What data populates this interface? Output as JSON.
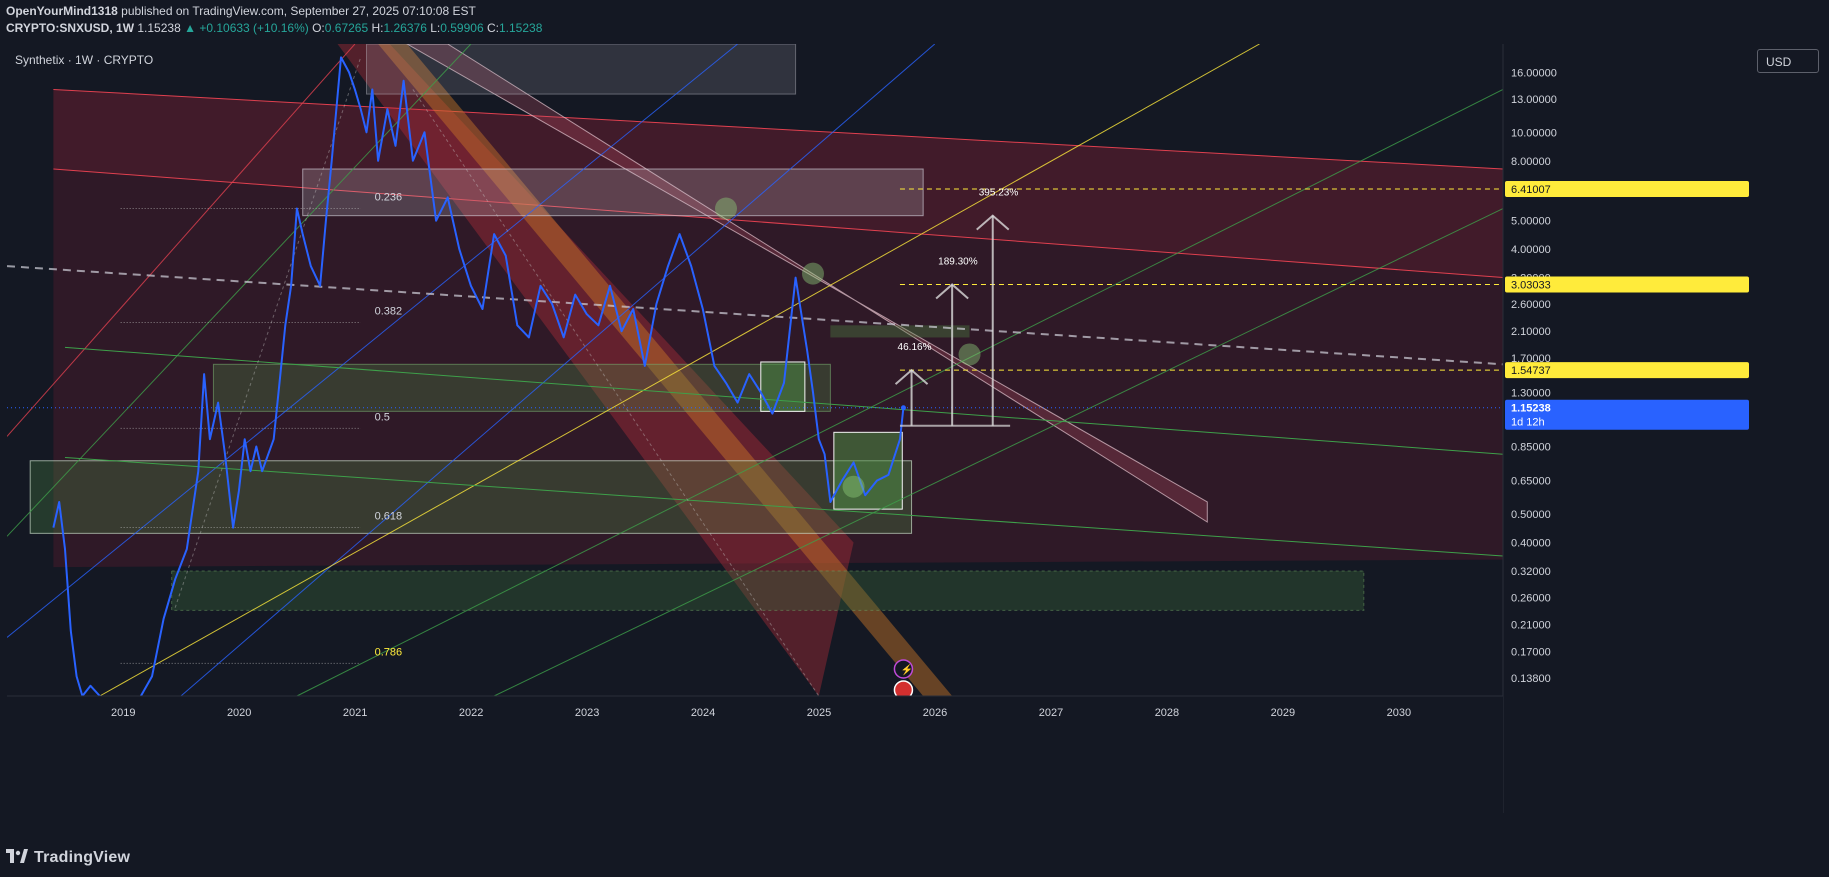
{
  "header": {
    "author": "OpenYourMind1318",
    "published": "published on TradingView.com, September 27, 2025 07:10:08 EST",
    "symbol": "CRYPTO:SNXUSD, 1W",
    "last": "1.15238",
    "change": "+0.10633 (+10.16%)",
    "o_label": "O:",
    "o": "0.67265",
    "h_label": "H:",
    "h": "1.26376",
    "l_label": "L:",
    "l": "0.59906",
    "c_label": "C:",
    "c": "1.15238"
  },
  "chart_label": "Synthetix · 1W · CRYPTO",
  "currency": "USD",
  "footer_brand": "TradingView",
  "colors": {
    "background": "#141823",
    "price_line": "#2962ff",
    "up": "#26a69a",
    "highlight": "#ffeb3b",
    "last_price": "#2962ff"
  },
  "chart_data": {
    "type": "line",
    "title": "Synthetix · 1W · CRYPTO",
    "scale": "log",
    "ylim": [
      0.12,
      20
    ],
    "xlim": [
      2018.0,
      2030.9
    ],
    "y_ticks": [
      "16.00000",
      "13.00000",
      "10.00000",
      "8.00000",
      "5.00000",
      "4.00000",
      "3.20000",
      "2.60000",
      "2.10000",
      "1.70000",
      "1.30000",
      "0.85000",
      "0.65000",
      "0.50000",
      "0.40000",
      "0.32000",
      "0.26000",
      "0.21000",
      "0.17000",
      "0.13800"
    ],
    "y_tick_values": [
      16,
      13,
      10,
      8,
      5,
      4,
      3.2,
      2.6,
      2.1,
      1.7,
      1.3,
      0.85,
      0.65,
      0.5,
      0.4,
      0.32,
      0.26,
      0.21,
      0.17,
      0.138
    ],
    "x_ticks": [
      "2019",
      "2020",
      "2021",
      "2022",
      "2023",
      "2024",
      "2025",
      "2026",
      "2027",
      "2028",
      "2029",
      "2030"
    ],
    "x_tick_values": [
      2019,
      2020,
      2021,
      2022,
      2023,
      2024,
      2025,
      2026,
      2027,
      2028,
      2029,
      2030
    ],
    "highlighted_levels": [
      {
        "label": "6.41007",
        "value": 6.41007
      },
      {
        "label": "3.03033",
        "value": 3.03033
      },
      {
        "label": "1.54737",
        "value": 1.54737
      }
    ],
    "last_price": {
      "label": "1.15238",
      "countdown": "1d 12h",
      "value": 1.15238
    },
    "fib_levels": [
      {
        "label": "0.236",
        "value": 5.5
      },
      {
        "label": "0.382",
        "value": 2.25
      },
      {
        "label": "0.5",
        "value": 0.98
      },
      {
        "label": "0.618",
        "value": 0.45
      },
      {
        "label": "0.786",
        "value": 0.155
      }
    ],
    "targets": [
      {
        "label": "46.16%",
        "from": 1.0,
        "to": 1.54737
      },
      {
        "label": "189.30%",
        "from": 1.0,
        "to": 3.03033
      },
      {
        "label": "395.23%",
        "from": 1.0,
        "to": 5.2
      }
    ],
    "series": [
      {
        "x": [
          2018.4,
          2018.45,
          2018.5,
          2018.55,
          2018.6,
          2018.65,
          2018.72,
          2018.8,
          2018.9,
          2019.0,
          2019.1,
          2019.25,
          2019.35,
          2019.45,
          2019.55,
          2019.65,
          2019.7,
          2019.75,
          2019.82,
          2019.88,
          2019.95,
          2020.0,
          2020.05,
          2020.1,
          2020.15,
          2020.2,
          2020.3,
          2020.35,
          2020.4,
          2020.45,
          2020.5,
          2020.55,
          2020.62,
          2020.7,
          2020.75,
          2020.8,
          2020.88,
          2020.95,
          2021.0,
          2021.05,
          2021.1,
          2021.15,
          2021.2,
          2021.28,
          2021.35,
          2021.42,
          2021.5,
          2021.6,
          2021.7,
          2021.8,
          2021.9,
          2022.0,
          2022.1,
          2022.2,
          2022.3,
          2022.4,
          2022.5,
          2022.6,
          2022.7,
          2022.8,
          2022.9,
          2023.0,
          2023.1,
          2023.2,
          2023.3,
          2023.4,
          2023.5,
          2023.6,
          2023.7,
          2023.8,
          2023.9,
          2024.0,
          2024.1,
          2024.2,
          2024.3,
          2024.4,
          2024.5,
          2024.6,
          2024.7,
          2024.8,
          2024.9,
          2024.95,
          2025.0,
          2025.05,
          2025.1,
          2025.2,
          2025.3,
          2025.4,
          2025.5,
          2025.6,
          2025.7,
          2025.73
        ],
        "values": [
          0.45,
          0.55,
          0.38,
          0.2,
          0.14,
          0.12,
          0.13,
          0.12,
          0.11,
          0.11,
          0.11,
          0.14,
          0.22,
          0.3,
          0.38,
          0.7,
          1.5,
          0.9,
          1.2,
          0.8,
          0.45,
          0.6,
          0.9,
          0.7,
          0.85,
          0.7,
          0.9,
          1.4,
          2.2,
          3.0,
          5.5,
          4.5,
          3.5,
          3.0,
          5.0,
          8.0,
          18,
          16,
          14,
          12,
          10,
          14,
          8,
          12,
          9,
          15,
          8,
          10,
          5,
          6,
          4,
          3,
          2.5,
          4.5,
          3.8,
          2.2,
          2.0,
          3.0,
          2.6,
          2.0,
          2.8,
          2.4,
          2.2,
          3.0,
          2.1,
          2.5,
          1.6,
          2.6,
          3.5,
          4.5,
          3.5,
          2.5,
          1.6,
          1.4,
          1.2,
          1.5,
          1.3,
          1.1,
          1.4,
          3.2,
          1.8,
          1.3,
          0.9,
          0.8,
          0.55,
          0.65,
          0.75,
          0.58,
          0.65,
          0.68,
          0.9,
          1.15238
        ]
      }
    ]
  }
}
